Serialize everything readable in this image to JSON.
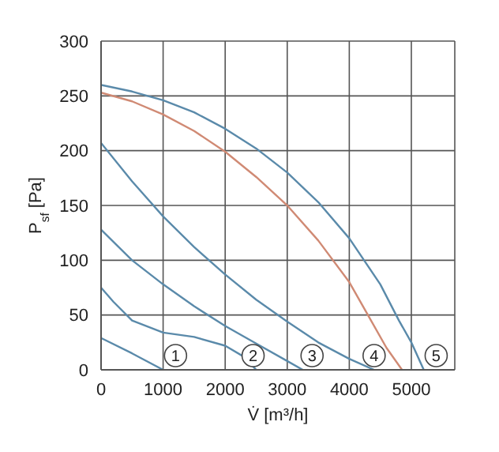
{
  "chart_data": {
    "type": "line",
    "xlabel": "V̇ [m³/h]",
    "ylabel": "P$_{sf}$ [Pa]",
    "xlim": [
      0,
      5700
    ],
    "ylim": [
      0,
      300
    ],
    "xticks": [
      0,
      1000,
      2000,
      3000,
      4000,
      5000
    ],
    "yticks": [
      0,
      50,
      100,
      150,
      200,
      250,
      300
    ],
    "grid": true,
    "marker": "none",
    "line_style": "solid",
    "series": [
      {
        "color": "#5a8aaa",
        "x": [
          0,
          500,
          1000
        ],
        "values": [
          29,
          15,
          0
        ]
      },
      {
        "color": "#5a8aaa",
        "x": [
          0,
          200,
          500,
          1000,
          1500,
          2000,
          2300,
          2500
        ],
        "values": [
          75,
          62,
          45,
          34,
          30,
          22,
          12,
          0
        ]
      },
      {
        "color": "#5a8aaa",
        "x": [
          0,
          500,
          1000,
          1500,
          2000,
          2500,
          3000,
          3250
        ],
        "values": [
          128,
          100,
          78,
          58,
          40,
          24,
          8,
          0
        ]
      },
      {
        "color": "#5a8aaa",
        "x": [
          0,
          500,
          1000,
          1500,
          2000,
          2500,
          3000,
          3500,
          4000,
          4400
        ],
        "values": [
          207,
          172,
          140,
          112,
          87,
          64,
          44,
          25,
          10,
          0
        ]
      },
      {
        "color": "#d08a74",
        "x": [
          0,
          500,
          1000,
          1500,
          2000,
          2500,
          3000,
          3500,
          4000,
          4300,
          4600,
          4850
        ],
        "values": [
          253,
          245,
          233,
          218,
          199,
          176,
          150,
          118,
          80,
          50,
          20,
          0
        ]
      },
      {
        "color": "#5a8aaa",
        "x": [
          0,
          500,
          1000,
          1500,
          2000,
          2500,
          3000,
          3500,
          4000,
          4500,
          4800,
          5000,
          5200
        ],
        "values": [
          260,
          254,
          246,
          235,
          220,
          202,
          180,
          153,
          120,
          78,
          45,
          25,
          0
        ]
      }
    ],
    "annotations": [
      {
        "text": "1",
        "x": 1200,
        "y": 13
      },
      {
        "text": "2",
        "x": 2450,
        "y": 13
      },
      {
        "text": "3",
        "x": 3400,
        "y": 13
      },
      {
        "text": "4",
        "x": 4400,
        "y": 13
      },
      {
        "text": "5",
        "x": 5400,
        "y": 13
      }
    ]
  }
}
